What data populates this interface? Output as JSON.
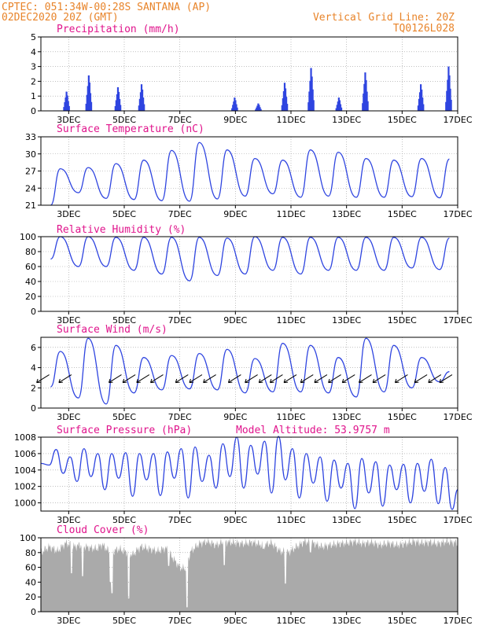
{
  "header": {
    "line1": "CPTEC:   051:34W-00:28S   SANTANA (AP)",
    "line2": "02DEC2020 20Z (GMT)",
    "grid_note": "Vertical Grid Line: 20Z",
    "code": "TQ0126L028"
  },
  "colors": {
    "header": "#e8842a",
    "title": "#e0148c",
    "line": "#2f45e0",
    "cloud": "#aaaaaa"
  },
  "x_axis": {
    "ticks": [
      "3DEC",
      "5DEC",
      "7DEC",
      "9DEC",
      "11DEC",
      "13DEC",
      "15DEC",
      "17DEC"
    ]
  },
  "chart_data": [
    {
      "type": "bar",
      "title": "Precipitation (mm/h)",
      "ylim": [
        0,
        5
      ],
      "yticks": [
        0,
        1,
        2,
        3,
        4,
        5
      ],
      "grid": true,
      "bursts": [
        {
          "day": 2.95,
          "peak": 1.3
        },
        {
          "day": 3.75,
          "peak": 2.4
        },
        {
          "day": 4.8,
          "peak": 1.6
        },
        {
          "day": 5.65,
          "peak": 1.8
        },
        {
          "day": 9.0,
          "peak": 0.9
        },
        {
          "day": 9.85,
          "peak": 0.5
        },
        {
          "day": 10.8,
          "peak": 1.9
        },
        {
          "day": 11.75,
          "peak": 2.9
        },
        {
          "day": 12.75,
          "peak": 0.9
        },
        {
          "day": 13.7,
          "peak": 2.6
        },
        {
          "day": 15.7,
          "peak": 1.8
        },
        {
          "day": 16.7,
          "peak": 3.0
        }
      ]
    },
    {
      "type": "line",
      "title": "Surface Temperature (nC)",
      "ylim": [
        21,
        33
      ],
      "yticks": [
        21,
        24,
        27,
        30,
        33
      ],
      "grid": true,
      "daily": [
        {
          "day": 2.4,
          "min": 21.0,
          "max": 27.4
        },
        {
          "day": 3.4,
          "min": 23.2,
          "max": 27.6
        },
        {
          "day": 4.4,
          "min": 22.2,
          "max": 28.3
        },
        {
          "day": 5.4,
          "min": 22.0,
          "max": 28.9
        },
        {
          "day": 6.4,
          "min": 21.8,
          "max": 30.6
        },
        {
          "day": 7.4,
          "min": 21.7,
          "max": 32.0
        },
        {
          "day": 8.4,
          "min": 22.1,
          "max": 30.7
        },
        {
          "day": 9.4,
          "min": 22.6,
          "max": 29.2
        },
        {
          "day": 10.4,
          "min": 23.0,
          "max": 28.9
        },
        {
          "day": 11.4,
          "min": 22.4,
          "max": 30.7
        },
        {
          "day": 12.4,
          "min": 22.6,
          "max": 30.3
        },
        {
          "day": 13.4,
          "min": 22.4,
          "max": 29.2
        },
        {
          "day": 14.4,
          "min": 22.4,
          "max": 28.9
        },
        {
          "day": 15.4,
          "min": 22.5,
          "max": 29.2
        },
        {
          "day": 16.4,
          "min": 22.3,
          "max": 29.1
        }
      ]
    },
    {
      "type": "line",
      "title": "Relative Humidity (%)",
      "ylim": [
        0,
        100
      ],
      "yticks": [
        0,
        20,
        40,
        60,
        80,
        100
      ],
      "grid": true,
      "daily": [
        {
          "day": 2.4,
          "min": 70,
          "max": 100
        },
        {
          "day": 3.4,
          "min": 60,
          "max": 100
        },
        {
          "day": 4.4,
          "min": 60,
          "max": 99
        },
        {
          "day": 5.4,
          "min": 55,
          "max": 99
        },
        {
          "day": 6.4,
          "min": 50,
          "max": 99
        },
        {
          "day": 7.4,
          "min": 41,
          "max": 99
        },
        {
          "day": 8.4,
          "min": 48,
          "max": 98
        },
        {
          "day": 9.4,
          "min": 50,
          "max": 100
        },
        {
          "day": 10.4,
          "min": 55,
          "max": 99
        },
        {
          "day": 11.4,
          "min": 50,
          "max": 99
        },
        {
          "day": 12.4,
          "min": 55,
          "max": 99
        },
        {
          "day": 13.4,
          "min": 55,
          "max": 99
        },
        {
          "day": 14.4,
          "min": 55,
          "max": 99
        },
        {
          "day": 15.4,
          "min": 58,
          "max": 99
        },
        {
          "day": 16.4,
          "min": 56,
          "max": 98
        }
      ]
    },
    {
      "type": "line",
      "title": "Surface Wind (m/s)",
      "ylim": [
        0,
        7
      ],
      "yticks": [
        0,
        2,
        4,
        6
      ],
      "grid": true,
      "daily": [
        {
          "day": 2.4,
          "min": 2.1,
          "max": 5.6
        },
        {
          "day": 3.4,
          "min": 1.0,
          "max": 6.9
        },
        {
          "day": 4.4,
          "min": 0.4,
          "max": 6.2
        },
        {
          "day": 5.4,
          "min": 1.5,
          "max": 5.0
        },
        {
          "day": 6.4,
          "min": 1.8,
          "max": 5.2
        },
        {
          "day": 7.4,
          "min": 1.9,
          "max": 5.4
        },
        {
          "day": 8.4,
          "min": 1.8,
          "max": 5.8
        },
        {
          "day": 9.4,
          "min": 1.5,
          "max": 4.9
        },
        {
          "day": 10.4,
          "min": 1.6,
          "max": 6.4
        },
        {
          "day": 11.4,
          "min": 1.6,
          "max": 6.2
        },
        {
          "day": 12.4,
          "min": 1.5,
          "max": 5.0
        },
        {
          "day": 13.4,
          "min": 1.1,
          "max": 6.9
        },
        {
          "day": 14.4,
          "min": 1.6,
          "max": 6.2
        },
        {
          "day": 15.4,
          "min": 2.0,
          "max": 5.0
        },
        {
          "day": 16.4,
          "min": 2.6,
          "max": 3.6
        }
      ],
      "barbs": [
        2.3,
        3.1,
        4.9,
        5.4,
        5.9,
        6.4,
        7.3,
        7.8,
        8.3,
        9.2,
        9.8,
        10.3,
        10.7,
        11.2,
        11.8,
        12.3,
        12.8,
        13.3,
        13.9,
        14.4,
        15.2,
        15.9,
        16.4,
        16.8
      ]
    },
    {
      "type": "line",
      "title": "Surface Pressure (hPa)",
      "annotation": "Model Altitude: 53.9757 m",
      "ylim": [
        999.0,
        1008
      ],
      "yticks": [
        1000,
        1002,
        1004,
        1006,
        1008
      ],
      "grid": true,
      "samples": [
        [
          2.0,
          1004.8
        ],
        [
          2.3,
          1004.6
        ],
        [
          2.55,
          1006.5
        ],
        [
          2.8,
          1003.6
        ],
        [
          3.05,
          1005.6
        ],
        [
          3.3,
          1002.6
        ],
        [
          3.55,
          1006.6
        ],
        [
          3.8,
          1003.2
        ],
        [
          4.05,
          1006.0
        ],
        [
          4.3,
          1001.6
        ],
        [
          4.55,
          1006.0
        ],
        [
          4.8,
          1003.0
        ],
        [
          5.05,
          1006.1
        ],
        [
          5.3,
          1000.8
        ],
        [
          5.55,
          1006.0
        ],
        [
          5.8,
          1002.8
        ],
        [
          6.05,
          1006.0
        ],
        [
          6.3,
          1000.9
        ],
        [
          6.55,
          1006.2
        ],
        [
          6.8,
          1003.0
        ],
        [
          7.05,
          1006.6
        ],
        [
          7.3,
          1000.6
        ],
        [
          7.55,
          1006.8
        ],
        [
          7.8,
          1002.6
        ],
        [
          8.05,
          1005.8
        ],
        [
          8.3,
          1001.8
        ],
        [
          8.55,
          1007.2
        ],
        [
          8.8,
          1003.2
        ],
        [
          9.05,
          1008.0
        ],
        [
          9.3,
          1001.8
        ],
        [
          9.55,
          1007.0
        ],
        [
          9.8,
          1003.5
        ],
        [
          10.05,
          1007.5
        ],
        [
          10.3,
          1001.2
        ],
        [
          10.55,
          1008.1
        ],
        [
          10.8,
          1002.8
        ],
        [
          11.05,
          1006.6
        ],
        [
          11.3,
          1000.6
        ],
        [
          11.55,
          1006.0
        ],
        [
          11.8,
          1002.4
        ],
        [
          12.05,
          1005.6
        ],
        [
          12.3,
          1000.2
        ],
        [
          12.55,
          1005.2
        ],
        [
          12.8,
          1001.8
        ],
        [
          13.05,
          1004.8
        ],
        [
          13.3,
          999.3
        ],
        [
          13.55,
          1005.4
        ],
        [
          13.8,
          1001.2
        ],
        [
          14.05,
          1005.0
        ],
        [
          14.3,
          999.6
        ],
        [
          14.55,
          1004.6
        ],
        [
          14.8,
          1001.6
        ],
        [
          15.05,
          1004.7
        ],
        [
          15.3,
          1000.0
        ],
        [
          15.55,
          1004.8
        ],
        [
          15.8,
          1001.4
        ],
        [
          16.05,
          1005.3
        ],
        [
          16.3,
          999.9
        ],
        [
          16.55,
          1004.3
        ],
        [
          16.8,
          999.2
        ],
        [
          17.0,
          1001.6
        ]
      ]
    },
    {
      "type": "area",
      "title": "Cloud Cover (%)",
      "ylim": [
        0,
        100
      ],
      "yticks": [
        0,
        20,
        40,
        60,
        80,
        100
      ],
      "grid": true,
      "samples": [
        [
          2.0,
          80
        ],
        [
          2.3,
          88
        ],
        [
          2.6,
          82
        ],
        [
          2.9,
          93
        ],
        [
          3.2,
          88
        ],
        [
          3.4,
          90
        ],
        [
          3.7,
          87
        ],
        [
          4.0,
          85
        ],
        [
          4.2,
          91
        ],
        [
          4.5,
          80
        ],
        [
          4.8,
          85
        ],
        [
          5.0,
          82
        ],
        [
          5.3,
          77
        ],
        [
          5.6,
          88
        ],
        [
          5.9,
          85
        ],
        [
          6.2,
          82
        ],
        [
          6.5,
          86
        ],
        [
          6.8,
          70
        ],
        [
          7.0,
          60
        ],
        [
          7.2,
          58
        ],
        [
          7.4,
          82
        ],
        [
          7.7,
          92
        ],
        [
          8.0,
          95
        ],
        [
          8.3,
          90
        ],
        [
          8.6,
          95
        ],
        [
          9.0,
          93
        ],
        [
          9.3,
          92
        ],
        [
          9.6,
          94
        ],
        [
          10.0,
          90
        ],
        [
          10.3,
          93
        ],
        [
          10.6,
          82
        ],
        [
          10.9,
          80
        ],
        [
          11.2,
          88
        ],
        [
          11.5,
          95
        ],
        [
          11.8,
          93
        ],
        [
          12.1,
          88
        ],
        [
          12.4,
          90
        ],
        [
          12.7,
          92
        ],
        [
          13.0,
          93
        ],
        [
          13.3,
          95
        ],
        [
          13.6,
          92
        ],
        [
          13.9,
          94
        ],
        [
          14.2,
          90
        ],
        [
          14.5,
          93
        ],
        [
          14.8,
          90
        ],
        [
          15.1,
          92
        ],
        [
          15.4,
          95
        ],
        [
          15.7,
          93
        ],
        [
          16.0,
          94
        ],
        [
          16.3,
          92
        ],
        [
          16.6,
          95
        ],
        [
          17.0,
          93
        ]
      ],
      "dips": [
        [
          3.1,
          52
        ],
        [
          3.5,
          48
        ],
        [
          4.5,
          40
        ],
        [
          4.55,
          25
        ],
        [
          5.15,
          18
        ],
        [
          6.6,
          62
        ],
        [
          7.25,
          6
        ],
        [
          8.6,
          63
        ],
        [
          10.0,
          85
        ],
        [
          10.8,
          38
        ],
        [
          11.7,
          80
        ]
      ]
    }
  ]
}
